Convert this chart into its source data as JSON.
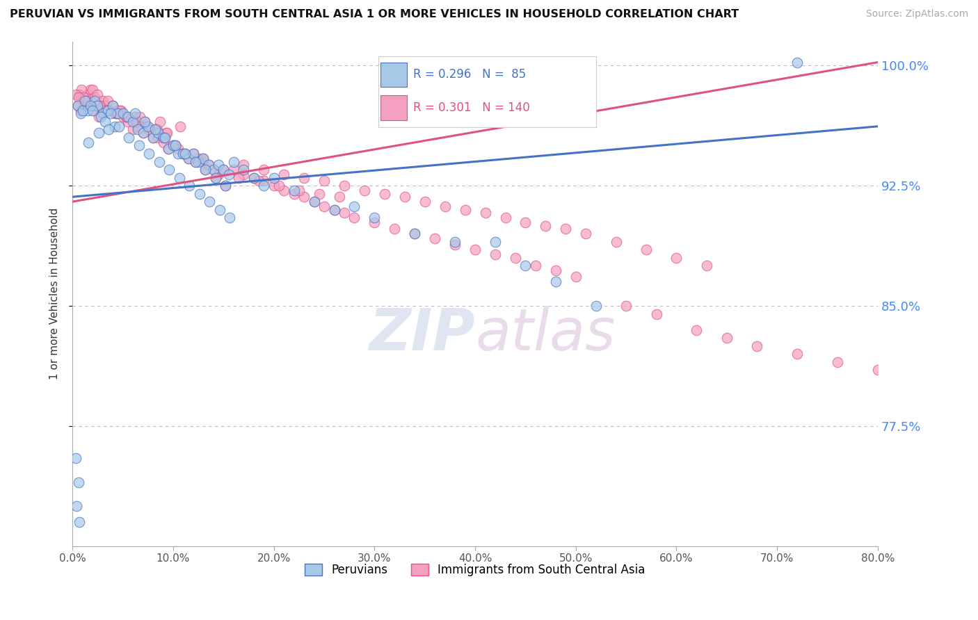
{
  "title": "PERUVIAN VS IMMIGRANTS FROM SOUTH CENTRAL ASIA 1 OR MORE VEHICLES IN HOUSEHOLD CORRELATION CHART",
  "source": "Source: ZipAtlas.com",
  "ylabel": "1 or more Vehicles in Household",
  "x_min": 0.0,
  "x_max": 80.0,
  "y_min": 70.0,
  "y_max": 101.5,
  "y_ticks": [
    77.5,
    85.0,
    92.5,
    100.0
  ],
  "x_ticks": [
    0.0,
    10.0,
    20.0,
    30.0,
    40.0,
    50.0,
    60.0,
    70.0,
    80.0
  ],
  "blue_R": 0.296,
  "blue_N": 85,
  "pink_R": 0.301,
  "pink_N": 140,
  "blue_color": "#a8c8e8",
  "pink_color": "#f4a0c0",
  "blue_line_color": "#4472c4",
  "pink_line_color": "#e05080",
  "legend_label_blue": "Peruvians",
  "legend_label_pink": "Immigrants from South Central Asia",
  "blue_line_x0": 0.0,
  "blue_line_y0": 91.8,
  "blue_line_x1": 80.0,
  "blue_line_y1": 96.2,
  "pink_line_x0": 0.0,
  "pink_line_y0": 91.5,
  "pink_line_x1": 80.0,
  "pink_line_y1": 100.2,
  "blue_x": [
    1.5,
    2.2,
    2.5,
    3.0,
    3.5,
    4.0,
    4.5,
    5.0,
    5.5,
    6.0,
    6.5,
    7.0,
    7.5,
    8.0,
    8.5,
    9.0,
    9.5,
    10.0,
    10.5,
    11.0,
    11.5,
    12.0,
    12.5,
    13.0,
    13.5,
    14.0,
    14.5,
    15.0,
    15.5,
    16.0,
    17.0,
    18.0,
    19.0,
    20.0,
    22.0,
    24.0,
    26.0,
    28.0,
    30.0,
    34.0,
    38.0,
    0.5,
    0.8,
    1.0,
    1.2,
    1.8,
    2.0,
    2.8,
    3.2,
    3.8,
    4.2,
    6.2,
    7.2,
    8.2,
    9.2,
    10.2,
    11.2,
    12.2,
    13.2,
    14.2,
    15.2,
    0.3,
    0.6,
    1.6,
    2.6,
    3.6,
    4.6,
    5.6,
    6.6,
    7.6,
    8.6,
    9.6,
    10.6,
    11.6,
    12.6,
    13.6,
    14.6,
    15.6,
    0.4,
    0.7,
    42.0,
    45.0,
    48.0,
    52.0,
    72.0
  ],
  "blue_y": [
    97.2,
    97.8,
    97.5,
    97.0,
    97.2,
    97.5,
    97.0,
    97.0,
    96.8,
    96.5,
    96.0,
    95.8,
    96.2,
    95.5,
    95.8,
    95.5,
    94.8,
    95.0,
    94.5,
    94.5,
    94.2,
    94.5,
    94.0,
    94.2,
    93.8,
    93.5,
    93.8,
    93.5,
    93.2,
    94.0,
    93.5,
    93.0,
    92.5,
    93.0,
    92.2,
    91.5,
    91.0,
    91.2,
    90.5,
    89.5,
    89.0,
    97.5,
    97.0,
    97.2,
    97.8,
    97.5,
    97.2,
    96.8,
    96.5,
    97.0,
    96.2,
    97.0,
    96.5,
    96.0,
    95.5,
    95.0,
    94.5,
    94.0,
    93.5,
    93.0,
    92.5,
    75.5,
    74.0,
    95.2,
    95.8,
    96.0,
    96.2,
    95.5,
    95.0,
    94.5,
    94.0,
    93.5,
    93.0,
    92.5,
    92.0,
    91.5,
    91.0,
    90.5,
    72.5,
    71.5,
    89.0,
    87.5,
    86.5,
    85.0,
    100.2
  ],
  "pink_x": [
    0.5,
    1.0,
    1.5,
    1.8,
    2.0,
    2.2,
    2.5,
    2.8,
    3.0,
    3.2,
    3.5,
    3.8,
    4.0,
    4.2,
    4.5,
    5.0,
    5.5,
    6.0,
    6.5,
    7.0,
    7.5,
    8.0,
    8.5,
    9.0,
    9.5,
    10.0,
    10.5,
    11.0,
    11.5,
    12.0,
    12.5,
    13.0,
    13.5,
    14.0,
    14.5,
    15.0,
    16.0,
    17.0,
    18.0,
    19.0,
    20.0,
    21.0,
    22.0,
    23.0,
    24.0,
    25.0,
    26.0,
    27.0,
    28.0,
    30.0,
    32.0,
    34.0,
    36.0,
    38.0,
    40.0,
    42.0,
    44.0,
    46.0,
    48.0,
    50.0,
    0.8,
    1.2,
    1.6,
    2.1,
    2.6,
    3.1,
    4.8,
    6.2,
    7.2,
    8.2,
    9.2,
    10.2,
    11.2,
    12.2,
    13.2,
    14.2,
    15.2,
    16.5,
    18.5,
    20.5,
    22.5,
    24.5,
    26.5,
    1.3,
    2.3,
    3.3,
    4.3,
    5.3,
    6.3,
    7.3,
    8.3,
    9.3,
    0.7,
    0.9,
    1.1,
    1.4,
    2.4,
    3.4,
    4.4,
    5.4,
    6.4,
    7.4,
    8.4,
    9.4,
    13.0,
    17.0,
    19.0,
    21.0,
    23.0,
    25.0,
    27.0,
    29.0,
    31.0,
    33.0,
    35.0,
    37.0,
    39.0,
    41.0,
    43.0,
    45.0,
    47.0,
    49.0,
    51.0,
    54.0,
    57.0,
    60.0,
    63.0,
    55.0,
    58.0,
    62.0,
    65.0,
    68.0,
    72.0,
    76.0,
    80.0,
    0.3,
    0.6,
    2.7,
    4.7,
    6.7,
    8.7,
    10.7
  ],
  "pink_y": [
    97.5,
    97.8,
    98.2,
    98.5,
    98.5,
    98.0,
    98.2,
    97.5,
    97.8,
    97.5,
    97.8,
    97.2,
    97.5,
    97.0,
    97.2,
    96.8,
    96.5,
    96.0,
    96.2,
    95.8,
    96.0,
    95.5,
    95.5,
    95.2,
    94.8,
    95.0,
    94.8,
    94.5,
    94.2,
    94.5,
    94.2,
    94.0,
    93.8,
    93.5,
    93.2,
    93.5,
    93.5,
    93.2,
    93.0,
    92.8,
    92.5,
    92.2,
    92.0,
    91.8,
    91.5,
    91.2,
    91.0,
    90.8,
    90.5,
    90.2,
    89.8,
    89.5,
    89.2,
    88.8,
    88.5,
    88.2,
    88.0,
    87.5,
    87.2,
    86.8,
    97.2,
    97.8,
    97.5,
    97.2,
    96.8,
    97.0,
    97.2,
    96.8,
    96.5,
    96.0,
    95.5,
    95.0,
    94.5,
    94.0,
    93.5,
    93.0,
    92.5,
    93.0,
    92.8,
    92.5,
    92.2,
    92.0,
    91.8,
    97.8,
    97.5,
    97.2,
    97.0,
    96.8,
    96.5,
    96.2,
    96.0,
    95.8,
    98.2,
    98.5,
    98.0,
    97.8,
    97.5,
    97.2,
    97.0,
    96.8,
    96.5,
    96.2,
    96.0,
    95.8,
    94.2,
    93.8,
    93.5,
    93.2,
    93.0,
    92.8,
    92.5,
    92.2,
    92.0,
    91.8,
    91.5,
    91.2,
    91.0,
    90.8,
    90.5,
    90.2,
    90.0,
    89.8,
    89.5,
    89.0,
    88.5,
    88.0,
    87.5,
    85.0,
    84.5,
    83.5,
    83.0,
    82.5,
    82.0,
    81.5,
    81.0,
    98.2,
    98.0,
    97.5,
    97.2,
    96.8,
    96.5,
    96.2
  ]
}
